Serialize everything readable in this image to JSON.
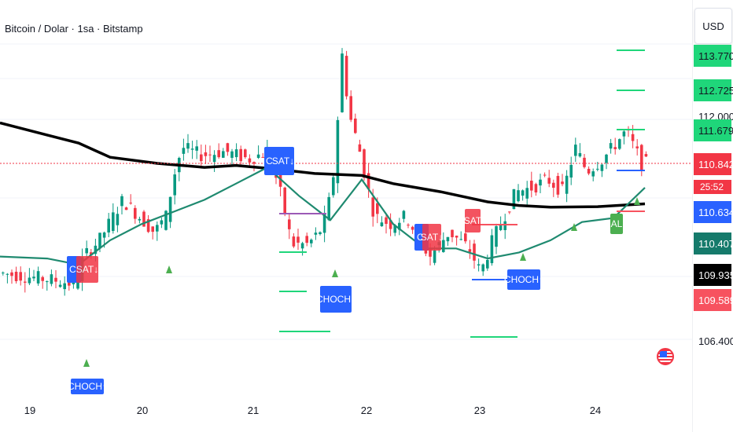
{
  "header": {
    "title": "Bitcoin / Dolar · 1sa · Bitstamp"
  },
  "price_axis": {
    "currency": "USD",
    "labels": [
      {
        "text": "113.770",
        "color": "#1fd67a",
        "text_color": "#131722"
      },
      {
        "text": "112.725",
        "color": "#1fd67a",
        "text_color": "#131722"
      },
      {
        "text": "112.000",
        "color": "",
        "text_color": "#131722"
      },
      {
        "text": "111.679",
        "color": "#1fd67a",
        "text_color": "#131722"
      },
      {
        "text": "110.842",
        "color": "#f23645",
        "text_color": "#ffffff"
      },
      {
        "text": "110.634",
        "color": "#2962ff",
        "text_color": "#ffffff"
      },
      {
        "text": "110.407",
        "color": "#157a6b",
        "text_color": "#ffffff"
      },
      {
        "text": "109.935",
        "color": "#000000",
        "text_color": "#ffffff"
      },
      {
        "text": "109.589",
        "color": "#f7525f",
        "text_color": "#ffffff"
      },
      {
        "text": "106.400",
        "color": "",
        "text_color": "#131722"
      }
    ],
    "countdown": "25:52"
  },
  "time_axis": {
    "labels": [
      "19",
      "20",
      "21",
      "22",
      "23",
      "24"
    ]
  },
  "tags": [
    {
      "text": "CI",
      "color": "blue"
    },
    {
      "text": "SAT↓",
      "color": "red"
    },
    {
      "text": "CHOCH↑",
      "color": "blue"
    },
    {
      "text": "CI",
      "color": "blue"
    },
    {
      "text": "SAT↓",
      "color": "blue"
    },
    {
      "text": "CHOCH↑",
      "color": "blue"
    },
    {
      "text": "CI",
      "color": "blue"
    },
    {
      "text": "SAT↓",
      "color": "red"
    },
    {
      "text": "SAT",
      "color": "red"
    },
    {
      "text": "CHOCH↑",
      "color": "blue"
    },
    {
      "text": "AL",
      "color": "green"
    }
  ],
  "colors": {
    "up": "#089981",
    "down": "#f23645",
    "ema_fast": "#1f8a70",
    "ema_slow": "#000000",
    "current_price_line": "#f23645"
  },
  "chart_data": {
    "type": "candlestick",
    "title": "Bitcoin / Dolar · 1sa · Bitstamp",
    "x_labels": [
      "19",
      "20",
      "21",
      "22",
      "23",
      "24"
    ],
    "ylim": [
      106.0,
      114.5
    ],
    "y_ticks": [
      106.4,
      109.935,
      112.0,
      112.725
    ],
    "last_price": 110.842,
    "ema_fast": [
      [
        0,
        108.6
      ],
      [
        60,
        108.55
      ],
      [
        100,
        108.4
      ],
      [
        140,
        109.0
      ],
      [
        180,
        109.4
      ],
      [
        220,
        109.7
      ],
      [
        260,
        110.0
      ],
      [
        300,
        110.4
      ],
      [
        340,
        110.8
      ],
      [
        380,
        110.1
      ],
      [
        420,
        109.5
      ],
      [
        460,
        110.5
      ],
      [
        500,
        109.4
      ],
      [
        540,
        108.8
      ],
      [
        580,
        108.8
      ],
      [
        620,
        108.55
      ],
      [
        660,
        108.7
      ],
      [
        700,
        109.0
      ],
      [
        740,
        109.45
      ],
      [
        780,
        109.55
      ],
      [
        820,
        110.3
      ]
    ],
    "ema_slow": [
      [
        0,
        111.9
      ],
      [
        60,
        111.6
      ],
      [
        100,
        111.4
      ],
      [
        140,
        111.05
      ],
      [
        200,
        110.9
      ],
      [
        260,
        110.8
      ],
      [
        300,
        110.85
      ],
      [
        340,
        110.78
      ],
      [
        400,
        110.65
      ],
      [
        460,
        110.6
      ],
      [
        500,
        110.4
      ],
      [
        560,
        110.2
      ],
      [
        620,
        109.95
      ],
      [
        660,
        109.86
      ],
      [
        700,
        109.82
      ],
      [
        760,
        109.83
      ],
      [
        820,
        109.9
      ]
    ]
  }
}
